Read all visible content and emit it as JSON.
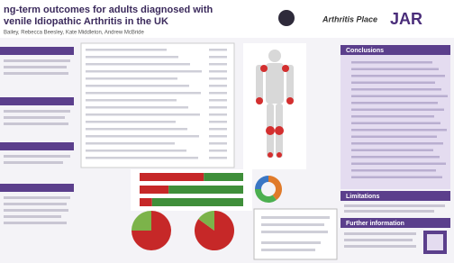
{
  "header": {
    "title_line1": "ng-term outcomes for adults diagnosed with",
    "title_line2": "venile Idiopathic Arthritis in the UK",
    "authors": "Bailey, Rebecca Beesley, Kate Middleton, Andrew McBride"
  },
  "logos": [
    "Arthritis Place",
    "JAR"
  ],
  "sections": {
    "conclusions": "Conclusions",
    "limitations": "Limitations",
    "further": "Further information"
  },
  "figures": {
    "bars": {
      "colors": [
        "#c62828",
        "#3f8f3a"
      ],
      "rows": [
        [
          62,
          38
        ],
        [
          28,
          72
        ],
        [
          12,
          88
        ]
      ]
    },
    "pies": {
      "colors": [
        "#c62828",
        "#7cb34a"
      ],
      "items": [
        [
          75,
          25
        ],
        [
          85,
          15
        ]
      ]
    },
    "donut": {
      "colors": [
        "#e07a2a",
        "#4caf50",
        "#3a76c4"
      ],
      "values": [
        40,
        35,
        25
      ]
    }
  }
}
